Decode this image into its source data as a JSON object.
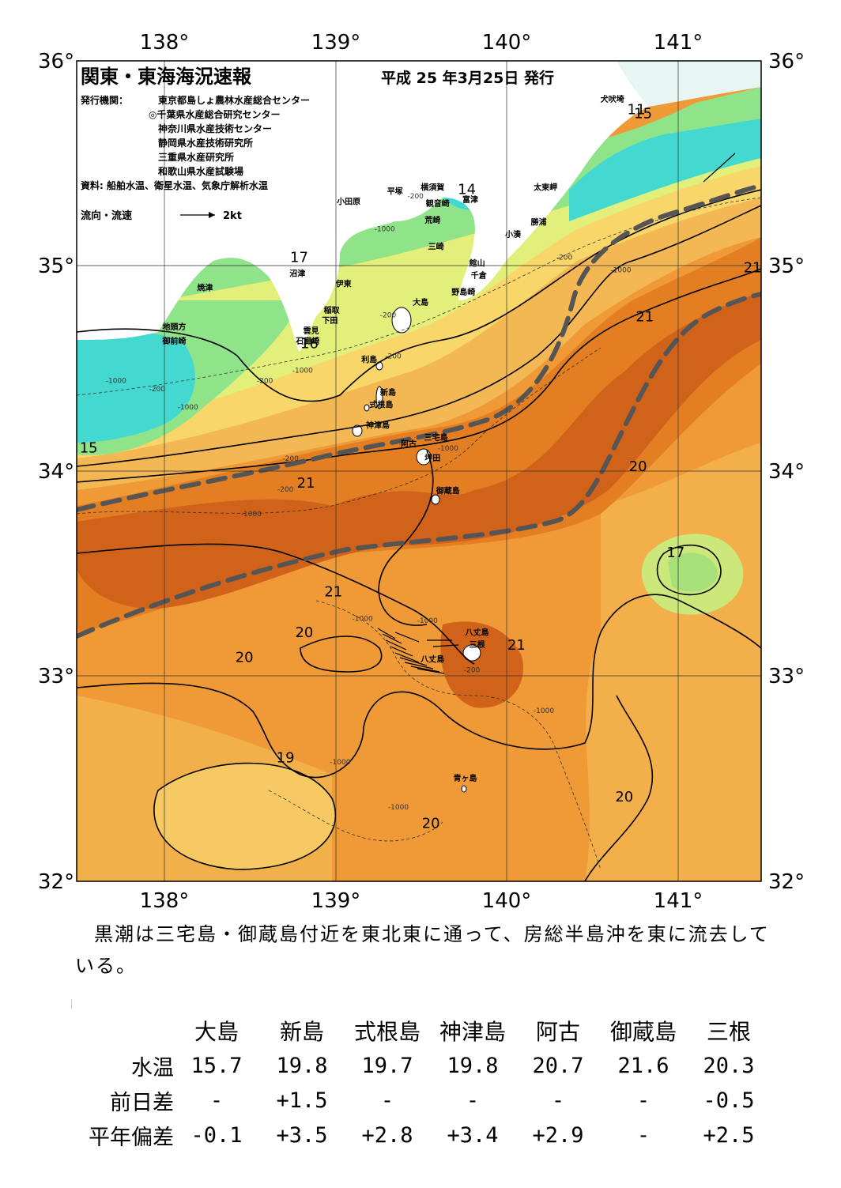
{
  "map": {
    "title": "関東・東海海況速報",
    "issue_date": "平成 25 年3月25日 発行",
    "publisher_label": "発行機関：",
    "publishers": [
      "東京都島しょ農林水産総合センター",
      "◎千葉県水産総合研究センター",
      "神奈川県水産技術センター",
      "静岡県水産技術研究所",
      "三重県水産研究所",
      "和歌山県水産試験場"
    ],
    "source": "資料: 船舶水温、衛星水温、気象庁解析水温",
    "flow_legend_label": "流向・流速",
    "flow_legend_value": "2kt",
    "lon_labels": [
      "138°",
      "139°",
      "140°",
      "141°"
    ],
    "lat_labels": [
      "36°",
      "35°",
      "34°",
      "33°",
      "32°"
    ],
    "extent": {
      "lon": [
        137.5,
        141.5
      ],
      "lat": [
        32,
        36
      ]
    },
    "temperature_labels": [
      {
        "text": "17",
        "lon": 138.8,
        "lat": 35.02
      },
      {
        "text": "16",
        "lon": 138.86,
        "lat": 34.6
      },
      {
        "text": "15",
        "lon": 137.57,
        "lat": 34.09
      },
      {
        "text": "14",
        "lon": 139.78,
        "lat": 35.35
      },
      {
        "text": "11",
        "lon": 140.77,
        "lat": 35.74
      },
      {
        "text": "15",
        "lon": 140.81,
        "lat": 35.72
      },
      {
        "text": "21",
        "lon": 140.82,
        "lat": 34.73
      },
      {
        "text": "21",
        "lon": 141.45,
        "lat": 34.97
      },
      {
        "text": "21",
        "lon": 138.84,
        "lat": 33.92
      },
      {
        "text": "20",
        "lon": 140.78,
        "lat": 34.0
      },
      {
        "text": "17",
        "lon": 141.0,
        "lat": 33.58
      },
      {
        "text": "21",
        "lon": 139.0,
        "lat": 33.39
      },
      {
        "text": "20",
        "lon": 138.83,
        "lat": 33.19
      },
      {
        "text": "21",
        "lon": 140.07,
        "lat": 33.13
      },
      {
        "text": "20",
        "lon": 138.48,
        "lat": 33.07
      },
      {
        "text": "19",
        "lon": 138.72,
        "lat": 32.58
      },
      {
        "text": "20",
        "lon": 140.7,
        "lat": 32.39
      },
      {
        "text": "20",
        "lon": 139.57,
        "lat": 32.26
      }
    ],
    "depth_labels": [
      {
        "text": "-1000",
        "lon": 139.3,
        "lat": 35.17
      },
      {
        "text": "-200",
        "lon": 139.48,
        "lat": 35.33
      },
      {
        "text": "-200",
        "lon": 139.32,
        "lat": 34.75
      },
      {
        "text": "-200",
        "lon": 139.35,
        "lat": 34.55
      },
      {
        "text": "-1000",
        "lon": 138.82,
        "lat": 34.48
      },
      {
        "text": "-200",
        "lon": 138.6,
        "lat": 34.43
      },
      {
        "text": "-1000",
        "lon": 137.73,
        "lat": 34.43
      },
      {
        "text": "-200",
        "lon": 137.97,
        "lat": 34.39
      },
      {
        "text": "-1000",
        "lon": 138.15,
        "lat": 34.3
      },
      {
        "text": "-200",
        "lon": 138.75,
        "lat": 34.05
      },
      {
        "text": "-200",
        "lon": 138.72,
        "lat": 33.9
      },
      {
        "text": "-1000",
        "lon": 138.52,
        "lat": 33.78
      },
      {
        "text": "-1000",
        "lon": 139.67,
        "lat": 34.1
      },
      {
        "text": "-200",
        "lon": 140.35,
        "lat": 35.03
      },
      {
        "text": "-1000",
        "lon": 140.68,
        "lat": 34.97
      },
      {
        "text": "-1000",
        "lon": 139.17,
        "lat": 33.27
      },
      {
        "text": "-1000",
        "lon": 139.55,
        "lat": 33.26
      },
      {
        "text": "-200",
        "lon": 139.81,
        "lat": 33.02
      },
      {
        "text": "-1000",
        "lon": 140.23,
        "lat": 32.82
      },
      {
        "text": "-1000",
        "lon": 139.04,
        "lat": 32.57
      },
      {
        "text": "-1000",
        "lon": 139.38,
        "lat": 32.35
      }
    ],
    "place_labels": [
      {
        "text": "犬吠埼",
        "lon": 140.63,
        "lat": 35.8
      },
      {
        "text": "太東岬",
        "lon": 140.24,
        "lat": 35.37
      },
      {
        "text": "勝浦",
        "lon": 140.2,
        "lat": 35.2
      },
      {
        "text": "小湊",
        "lon": 140.05,
        "lat": 35.14
      },
      {
        "text": "富津",
        "lon": 139.8,
        "lat": 35.31
      },
      {
        "text": "横須賀",
        "lon": 139.58,
        "lat": 35.37
      },
      {
        "text": "観音崎",
        "lon": 139.61,
        "lat": 35.29
      },
      {
        "text": "荒崎",
        "lon": 139.58,
        "lat": 35.21
      },
      {
        "text": "三崎",
        "lon": 139.6,
        "lat": 35.08
      },
      {
        "text": "館山",
        "lon": 139.84,
        "lat": 35.0
      },
      {
        "text": "千倉",
        "lon": 139.85,
        "lat": 34.94
      },
      {
        "text": "野島崎",
        "lon": 139.76,
        "lat": 34.86
      },
      {
        "text": "平塚",
        "lon": 139.36,
        "lat": 35.35
      },
      {
        "text": "小田原",
        "lon": 139.09,
        "lat": 35.3
      },
      {
        "text": "沼津",
        "lon": 138.79,
        "lat": 34.95
      },
      {
        "text": "伊東",
        "lon": 139.06,
        "lat": 34.9
      },
      {
        "text": "焼津",
        "lon": 138.25,
        "lat": 34.88
      },
      {
        "text": "稲取",
        "lon": 138.99,
        "lat": 34.77
      },
      {
        "text": "下田",
        "lon": 138.98,
        "lat": 34.72
      },
      {
        "text": "雲見",
        "lon": 138.87,
        "lat": 34.67
      },
      {
        "text": "石廊崎",
        "lon": 138.85,
        "lat": 34.62
      },
      {
        "text": "地頭方",
        "lon": 138.07,
        "lat": 34.69
      },
      {
        "text": "御前崎",
        "lon": 138.07,
        "lat": 34.62
      },
      {
        "text": "大島",
        "lon": 139.51,
        "lat": 34.81
      },
      {
        "text": "利島",
        "lon": 139.21,
        "lat": 34.53
      },
      {
        "text": "新島",
        "lon": 139.32,
        "lat": 34.37
      },
      {
        "text": "式根島",
        "lon": 139.28,
        "lat": 34.31
      },
      {
        "text": "神津島",
        "lon": 139.26,
        "lat": 34.21
      },
      {
        "text": "三宅島",
        "lon": 139.6,
        "lat": 34.15
      },
      {
        "text": "阿古",
        "lon": 139.44,
        "lat": 34.12
      },
      {
        "text": "坪田",
        "lon": 139.58,
        "lat": 34.05
      },
      {
        "text": "御蔵島",
        "lon": 139.67,
        "lat": 33.89
      },
      {
        "text": "八丈島",
        "lon": 139.84,
        "lat": 33.2
      },
      {
        "text": "三根",
        "lon": 139.84,
        "lat": 33.14
      },
      {
        "text": "八丈島",
        "lon": 139.58,
        "lat": 33.07
      },
      {
        "text": "青ヶ島",
        "lon": 139.77,
        "lat": 32.49
      }
    ],
    "colors": {
      "land": "#ffffff",
      "cold": "#44d9d0",
      "cool": "#8fe48a",
      "mid": "#d6ec78",
      "warm": "#f3b04a",
      "hot": "#e0771c",
      "core": "#c9580f",
      "kuroshio": "#555555"
    }
  },
  "summary": "黒潮は三宅島・御蔵島付近を東北東に通って、房総半島沖を東に流去している。",
  "table": {
    "columns": [
      "大島",
      "新島",
      "式根島",
      "神津島",
      "阿古",
      "御蔵島",
      "三根"
    ],
    "rows": [
      {
        "label": "水温",
        "values": [
          "15.7",
          "19.8",
          "19.7",
          "19.8",
          "20.7",
          "21.6",
          "20.3"
        ]
      },
      {
        "label": "前日差",
        "values": [
          "-",
          "+1.5",
          "-",
          "-",
          "-",
          "-",
          "-0.5"
        ]
      },
      {
        "label": "平年偏差",
        "values": [
          "-0.1",
          "+3.5",
          "+2.8",
          "+3.4",
          "+2.9",
          "-",
          "+2.5"
        ]
      }
    ]
  }
}
